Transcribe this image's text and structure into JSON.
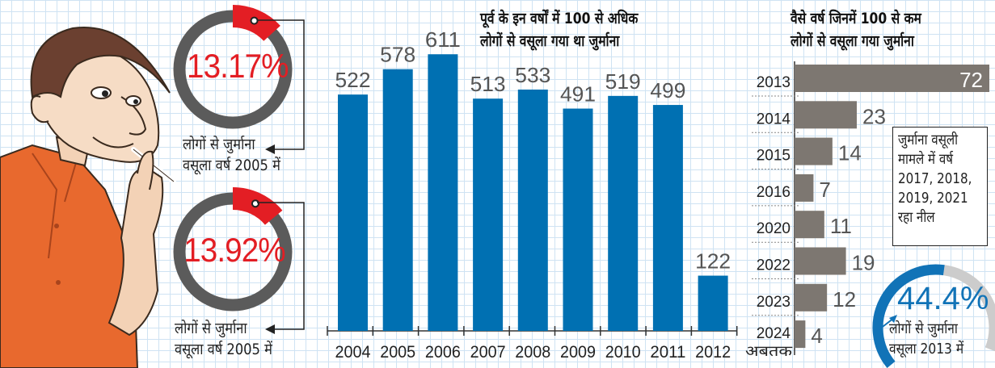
{
  "colors": {
    "bar_blue": "#0070b2",
    "bar_gray": "#7d7771",
    "ring_gray": "#5b5b5b",
    "ring_red": "#e31e24",
    "arc_blue": "#1173b7",
    "arc_light": "#cccccc",
    "shirt_orange": "#e8692e"
  },
  "donuts": [
    {
      "value_label": "13.17%",
      "fraction": 0.1317,
      "caption_line1": "लोगों से जुर्माना",
      "caption_line2": "वसूला वर्ष 2005 में"
    },
    {
      "value_label": "13.92%",
      "fraction": 0.1392,
      "caption_line1": "लोगों से जुर्माना",
      "caption_line2": "वसूला वर्ष 2005 में"
    }
  ],
  "gauge": {
    "value_label": "44.4%",
    "fraction": 0.444,
    "caption_line1": "लोगों से जुर्माना",
    "caption_line2": "वसूला 2013 में"
  },
  "note": {
    "lines": [
      "जुर्माना वसूली",
      "मामले में वर्ष",
      "2017, 2018,",
      "2019, 2021",
      "रहा नील"
    ]
  },
  "chart_data": [
    {
      "type": "bar",
      "title_line1": "पूर्व के इन वर्षों में 100 से अधिक",
      "title_line2": "लोगों से वसूला गया था जुर्माना",
      "categories": [
        "2004",
        "2005",
        "2006",
        "2007",
        "2008",
        "2009",
        "2010",
        "2011",
        "2012"
      ],
      "values": [
        522,
        578,
        611,
        513,
        533,
        491,
        519,
        499,
        122
      ],
      "value_labels": [
        "522",
        "578",
        "611",
        "513",
        "533",
        "491",
        "519",
        "499",
        "122"
      ],
      "xlabel": "",
      "ylabel": "",
      "ylim": [
        0,
        700
      ],
      "grid": false
    },
    {
      "type": "bar",
      "orientation": "horizontal",
      "title_line1": "वैसे वर्ष जिनमें 100 से कम",
      "title_line2": "लोगों से वसूला गया जुर्माना",
      "categories": [
        "2013",
        "2014",
        "2015",
        "2016",
        "2020",
        "2022",
        "2023",
        "2024"
      ],
      "category_sublabels": [
        "",
        "",
        "",
        "",
        "",
        "",
        "",
        "अबतक"
      ],
      "values": [
        72,
        23,
        14,
        7,
        11,
        19,
        12,
        4
      ],
      "value_labels": [
        "72",
        "23",
        "14",
        "7",
        "11",
        "19",
        "12",
        "4"
      ],
      "xlim": [
        0,
        72
      ],
      "grid": false
    }
  ]
}
